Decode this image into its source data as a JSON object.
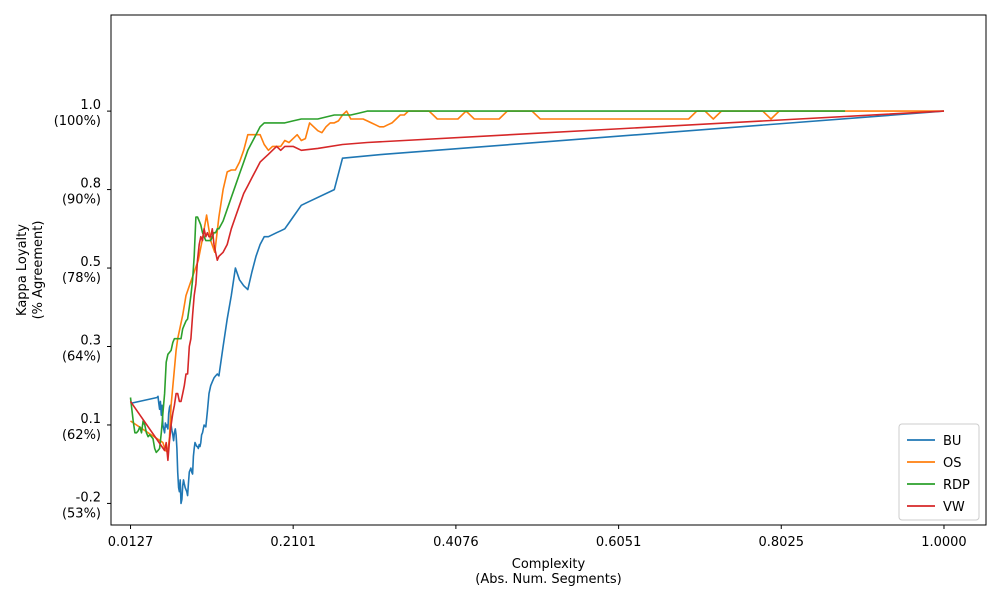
{
  "chart_data": {
    "type": "line",
    "xlabel": "Complexity",
    "xlabel_sub": "(Abs. Num. Segments)",
    "ylabel": "Kappa Loyalty",
    "ylabel_sub": "(% Agreement)",
    "xlim": [
      -0.011,
      1.051
    ],
    "ylim": [
      -0.255,
      1.045
    ],
    "x_ticks": [
      {
        "value": 0.0127,
        "label": "0.0127"
      },
      {
        "value": 0.2101,
        "label": "0.2101"
      },
      {
        "value": 0.4076,
        "label": "0.4076"
      },
      {
        "value": 0.6051,
        "label": "0.6051"
      },
      {
        "value": 0.8025,
        "label": "0.8025"
      },
      {
        "value": 1.0,
        "label": "1.0000"
      }
    ],
    "y_ticks": [
      {
        "value": -0.2,
        "label": "-0.2",
        "sub": "(53%)"
      },
      {
        "value": 0.0,
        "label": "0.1",
        "sub": "(62%)"
      },
      {
        "value": 0.2,
        "label": "0.3",
        "sub": "(64%)"
      },
      {
        "value": 0.4,
        "label": "0.5",
        "sub": "(78%)"
      },
      {
        "value": 0.6,
        "label": "0.8",
        "sub": "(90%)"
      },
      {
        "value": 0.8,
        "label": "1.0",
        "sub": "(100%)"
      }
    ],
    "legend_position": "lower-right",
    "grid": false,
    "series": [
      {
        "name": "BU",
        "color": "#1f77b4",
        "x": [
          0.0127,
          0.045,
          0.046,
          0.047,
          0.048,
          0.049,
          0.05,
          0.051,
          0.052,
          0.053,
          0.054,
          0.055,
          0.056,
          0.057,
          0.058,
          0.059,
          0.06,
          0.061,
          0.062,
          0.063,
          0.064,
          0.065,
          0.066,
          0.067,
          0.068,
          0.069,
          0.07,
          0.071,
          0.072,
          0.073,
          0.074,
          0.075,
          0.076,
          0.077,
          0.078,
          0.079,
          0.08,
          0.081,
          0.082,
          0.083,
          0.084,
          0.085,
          0.086,
          0.087,
          0.088,
          0.089,
          0.09,
          0.091,
          0.092,
          0.093,
          0.094,
          0.095,
          0.096,
          0.097,
          0.098,
          0.099,
          0.1,
          0.102,
          0.104,
          0.106,
          0.108,
          0.11,
          0.112,
          0.114,
          0.116,
          0.118,
          0.12,
          0.125,
          0.13,
          0.135,
          0.14,
          0.145,
          0.15,
          0.155,
          0.16,
          0.165,
          0.17,
          0.175,
          0.18,
          0.185,
          0.19,
          0.195,
          0.2,
          0.205,
          0.21,
          0.215,
          0.22,
          0.225,
          0.23,
          0.26,
          0.27,
          0.32,
          1.0
        ],
        "y": [
          0.055,
          0.07,
          0.073,
          0.055,
          0.04,
          0.06,
          0.025,
          0.05,
          0.0,
          -0.01,
          -0.02,
          0.005,
          -0.005,
          0.0,
          -0.01,
          0.03,
          0.045,
          0.05,
          0.0,
          -0.015,
          -0.025,
          -0.04,
          -0.02,
          -0.01,
          -0.025,
          -0.06,
          -0.12,
          -0.16,
          -0.17,
          -0.14,
          -0.2,
          -0.19,
          -0.155,
          -0.14,
          -0.15,
          -0.16,
          -0.165,
          -0.17,
          -0.18,
          -0.15,
          -0.12,
          -0.115,
          -0.11,
          -0.12,
          -0.125,
          -0.08,
          -0.06,
          -0.045,
          -0.05,
          -0.055,
          -0.055,
          -0.06,
          -0.05,
          -0.055,
          -0.045,
          -0.025,
          -0.02,
          -0.0,
          -0.005,
          0.035,
          0.08,
          0.1,
          0.11,
          0.12,
          0.125,
          0.13,
          0.125,
          0.2,
          0.27,
          0.33,
          0.4,
          0.37,
          0.355,
          0.345,
          0.39,
          0.43,
          0.46,
          0.48,
          0.48,
          0.485,
          0.49,
          0.495,
          0.5,
          0.515,
          0.53,
          0.545,
          0.56,
          0.565,
          0.57,
          0.6,
          0.68,
          0.69,
          0.8
        ]
      },
      {
        "name": "OS",
        "color": "#ff7f0e",
        "x": [
          0.0127,
          0.052,
          0.055,
          0.058,
          0.06,
          0.062,
          0.065,
          0.068,
          0.07,
          0.073,
          0.076,
          0.08,
          0.085,
          0.09,
          0.095,
          0.1,
          0.105,
          0.11,
          0.115,
          0.12,
          0.125,
          0.13,
          0.135,
          0.14,
          0.145,
          0.15,
          0.155,
          0.16,
          0.165,
          0.17,
          0.175,
          0.18,
          0.185,
          0.19,
          0.195,
          0.2,
          0.205,
          0.21,
          0.215,
          0.22,
          0.225,
          0.23,
          0.235,
          0.24,
          0.245,
          0.25,
          0.255,
          0.26,
          0.265,
          0.27,
          0.275,
          0.28,
          0.285,
          0.29,
          0.295,
          0.3,
          0.305,
          0.31,
          0.315,
          0.32,
          0.325,
          0.33,
          0.335,
          0.34,
          0.345,
          0.35,
          0.355,
          0.36,
          0.365,
          0.37,
          0.375,
          0.38,
          0.385,
          0.39,
          0.395,
          0.4,
          0.41,
          0.42,
          0.43,
          0.44,
          0.45,
          0.46,
          0.47,
          0.48,
          0.49,
          0.5,
          0.51,
          0.52,
          0.53,
          0.54,
          0.55,
          0.56,
          0.57,
          0.58,
          0.59,
          0.6,
          0.61,
          0.62,
          0.63,
          0.64,
          0.65,
          0.66,
          0.67,
          0.68,
          0.69,
          0.7,
          0.71,
          0.72,
          0.73,
          0.74,
          0.75,
          0.76,
          0.77,
          0.78,
          0.79,
          0.8,
          0.81,
          0.82,
          1.0
        ],
        "y": [
          0.01,
          -0.045,
          -0.065,
          -0.07,
          -0.03,
          0.05,
          0.12,
          0.19,
          0.22,
          0.25,
          0.28,
          0.33,
          0.36,
          0.39,
          0.42,
          0.475,
          0.535,
          0.47,
          0.44,
          0.53,
          0.6,
          0.645,
          0.65,
          0.65,
          0.67,
          0.7,
          0.74,
          0.74,
          0.74,
          0.74,
          0.715,
          0.7,
          0.71,
          0.71,
          0.71,
          0.725,
          0.72,
          0.73,
          0.74,
          0.725,
          0.73,
          0.77,
          0.76,
          0.75,
          0.745,
          0.76,
          0.77,
          0.77,
          0.775,
          0.79,
          0.8,
          0.78,
          0.78,
          0.78,
          0.78,
          0.775,
          0.77,
          0.765,
          0.76,
          0.76,
          0.765,
          0.77,
          0.78,
          0.79,
          0.79,
          0.8,
          0.8,
          0.8,
          0.8,
          0.8,
          0.8,
          0.79,
          0.78,
          0.78,
          0.78,
          0.78,
          0.78,
          0.8,
          0.78,
          0.78,
          0.78,
          0.78,
          0.8,
          0.8,
          0.8,
          0.8,
          0.78,
          0.78,
          0.78,
          0.78,
          0.78,
          0.78,
          0.78,
          0.78,
          0.78,
          0.78,
          0.78,
          0.78,
          0.78,
          0.78,
          0.78,
          0.78,
          0.78,
          0.78,
          0.78,
          0.8,
          0.8,
          0.78,
          0.8,
          0.8,
          0.8,
          0.8,
          0.8,
          0.8,
          0.78,
          0.8,
          0.8,
          0.8,
          0.8
        ]
      },
      {
        "name": "RDP",
        "color": "#2ca02c",
        "x": [
          0.0127,
          0.014,
          0.016,
          0.018,
          0.02,
          0.022,
          0.024,
          0.026,
          0.028,
          0.03,
          0.032,
          0.034,
          0.036,
          0.038,
          0.04,
          0.042,
          0.044,
          0.046,
          0.048,
          0.05,
          0.052,
          0.054,
          0.056,
          0.058,
          0.06,
          0.062,
          0.064,
          0.066,
          0.068,
          0.07,
          0.072,
          0.074,
          0.076,
          0.078,
          0.08,
          0.082,
          0.084,
          0.086,
          0.088,
          0.09,
          0.092,
          0.094,
          0.096,
          0.098,
          0.1,
          0.102,
          0.104,
          0.106,
          0.108,
          0.11,
          0.112,
          0.114,
          0.116,
          0.118,
          0.12,
          0.125,
          0.13,
          0.135,
          0.14,
          0.145,
          0.15,
          0.155,
          0.16,
          0.165,
          0.17,
          0.175,
          0.18,
          0.185,
          0.19,
          0.195,
          0.2,
          0.21,
          0.22,
          0.23,
          0.24,
          0.25,
          0.26,
          0.27,
          0.28,
          0.29,
          0.3,
          0.31,
          0.32,
          0.33,
          0.34,
          0.35,
          0.36,
          0.37,
          0.38,
          0.39,
          0.4,
          0.88
        ],
        "y": [
          0.07,
          0.045,
          0.01,
          -0.02,
          -0.02,
          -0.015,
          -0.005,
          -0.02,
          0.01,
          0.0,
          -0.02,
          -0.03,
          -0.025,
          -0.03,
          -0.035,
          -0.06,
          -0.07,
          -0.065,
          -0.06,
          -0.02,
          0.03,
          0.08,
          0.16,
          0.18,
          0.185,
          0.19,
          0.21,
          0.22,
          0.22,
          0.22,
          0.22,
          0.22,
          0.245,
          0.255,
          0.265,
          0.27,
          0.3,
          0.33,
          0.37,
          0.43,
          0.53,
          0.53,
          0.52,
          0.51,
          0.49,
          0.48,
          0.47,
          0.47,
          0.47,
          0.47,
          0.48,
          0.49,
          0.49,
          0.5,
          0.5,
          0.52,
          0.55,
          0.58,
          0.61,
          0.64,
          0.67,
          0.7,
          0.72,
          0.74,
          0.76,
          0.77,
          0.77,
          0.77,
          0.77,
          0.77,
          0.77,
          0.775,
          0.78,
          0.78,
          0.78,
          0.785,
          0.79,
          0.79,
          0.79,
          0.795,
          0.8,
          0.8,
          0.8,
          0.8,
          0.8,
          0.8,
          0.8,
          0.8,
          0.8,
          0.8,
          0.8,
          0.8
        ]
      },
      {
        "name": "VW",
        "color": "#d62728",
        "x": [
          0.0127,
          0.054,
          0.056,
          0.058,
          0.06,
          0.062,
          0.064,
          0.066,
          0.068,
          0.07,
          0.072,
          0.074,
          0.076,
          0.078,
          0.08,
          0.082,
          0.084,
          0.086,
          0.088,
          0.09,
          0.092,
          0.094,
          0.096,
          0.098,
          0.1,
          0.102,
          0.104,
          0.106,
          0.108,
          0.11,
          0.112,
          0.114,
          0.116,
          0.118,
          0.12,
          0.125,
          0.13,
          0.135,
          0.14,
          0.145,
          0.15,
          0.155,
          0.16,
          0.165,
          0.17,
          0.175,
          0.18,
          0.185,
          0.19,
          0.195,
          0.2,
          0.21,
          0.22,
          0.24,
          0.27,
          0.3,
          1.0
        ],
        "y": [
          0.06,
          -0.065,
          -0.045,
          -0.09,
          -0.04,
          0.0,
          0.03,
          0.05,
          0.08,
          0.08,
          0.06,
          0.06,
          0.08,
          0.1,
          0.13,
          0.13,
          0.2,
          0.22,
          0.28,
          0.33,
          0.36,
          0.42,
          0.46,
          0.48,
          0.47,
          0.5,
          0.48,
          0.49,
          0.48,
          0.48,
          0.5,
          0.46,
          0.44,
          0.42,
          0.43,
          0.44,
          0.46,
          0.5,
          0.53,
          0.56,
          0.59,
          0.61,
          0.63,
          0.65,
          0.67,
          0.68,
          0.69,
          0.7,
          0.71,
          0.7,
          0.71,
          0.71,
          0.7,
          0.705,
          0.715,
          0.72,
          0.8
        ]
      }
    ]
  }
}
